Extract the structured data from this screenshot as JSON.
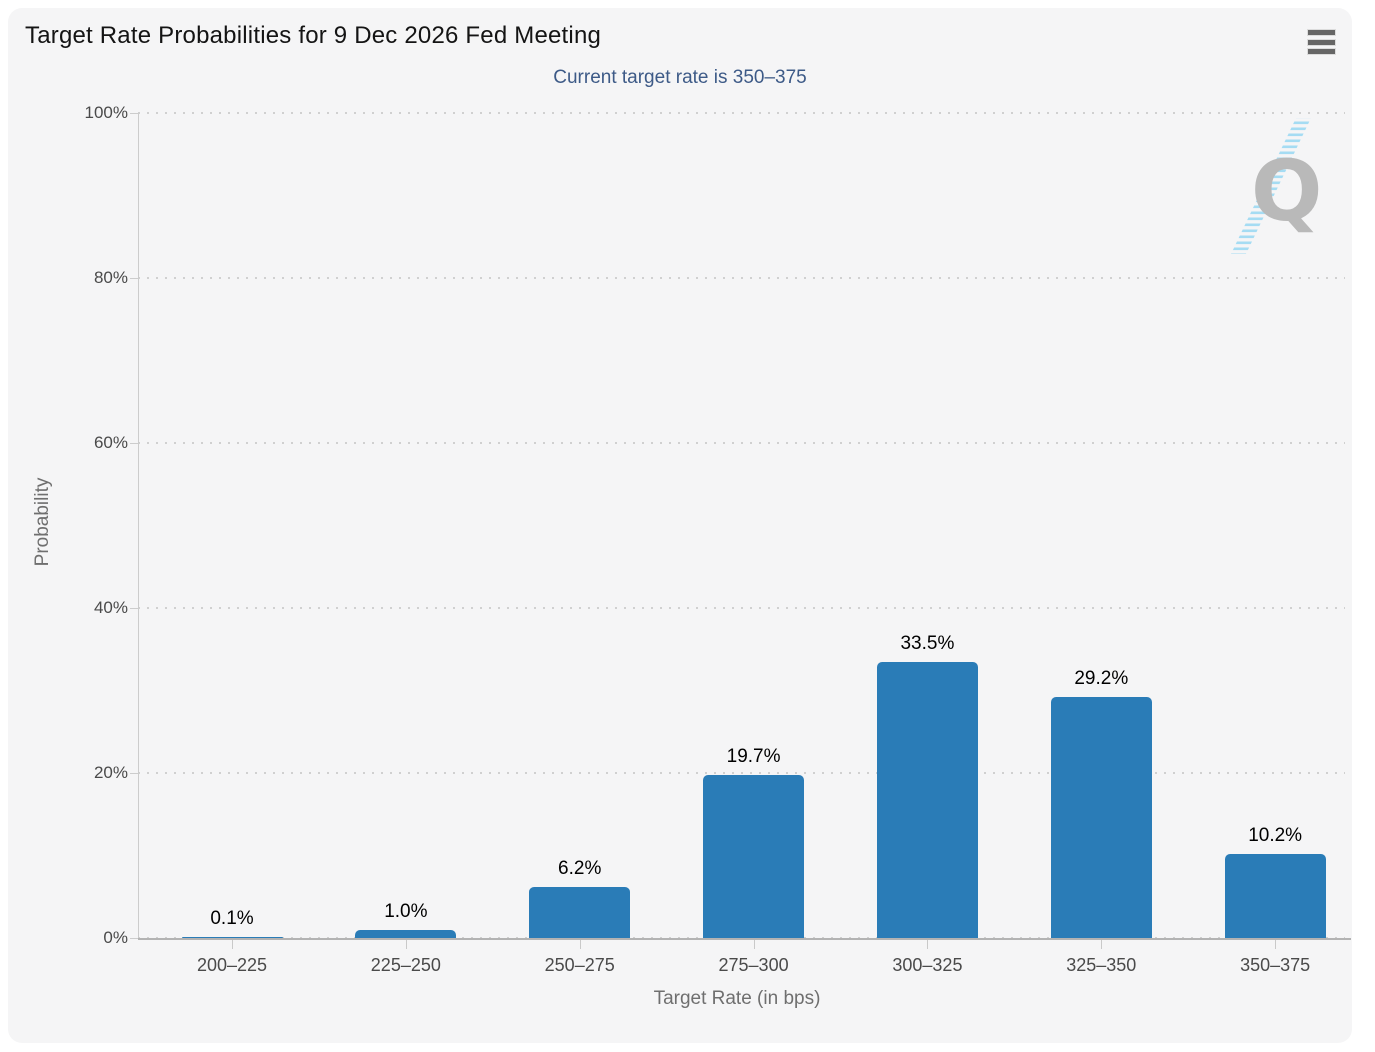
{
  "header": {
    "title": "Target Rate Probabilities for 9 Dec 2026 Fed Meeting",
    "subtitle": "Current target rate is 350–375"
  },
  "icons": {
    "menu": "hamburger-icon",
    "watermark": "quikstrike-q-logo"
  },
  "watermark": {
    "letter": "Q"
  },
  "colors": {
    "card_background": "#f5f5f6",
    "page_background": "#ffffff",
    "bar": "#2a7cb7",
    "subtitle": "#3d5a87",
    "axis_label": "#4a4a4a",
    "axis_title": "#6f6f6f",
    "grid_dot": "#d0d0d0",
    "y_axis_line": "#cccccc",
    "x_axis_line": "#b3b3b3",
    "menu_icon": "#666666",
    "watermark_q": "#b9b9b9",
    "watermark_stripes": "#a5dcf3"
  },
  "chart_data": {
    "type": "bar",
    "title": "Target Rate Probabilities for 9 Dec 2026 Fed Meeting",
    "subtitle": "Current target rate is 350–375",
    "categories": [
      "200–225",
      "225–250",
      "250–275",
      "275–300",
      "300–325",
      "325–350",
      "350–375"
    ],
    "values": [
      0.1,
      1.0,
      6.2,
      19.7,
      33.5,
      29.2,
      10.2
    ],
    "value_labels": [
      "0.1%",
      "1.0%",
      "6.2%",
      "19.7%",
      "33.5%",
      "29.2%",
      "10.2%"
    ],
    "xlabel": "Target Rate (in bps)",
    "ylabel": "Probability",
    "ylim": [
      0,
      100
    ],
    "yticks": [
      0,
      20,
      40,
      60,
      80,
      100
    ],
    "ytick_labels": [
      "0%",
      "20%",
      "40%",
      "60%",
      "80%",
      "100%"
    ],
    "grid": "dotted horizontal gridlines",
    "legend_position": "none",
    "series_name": "Probability"
  }
}
